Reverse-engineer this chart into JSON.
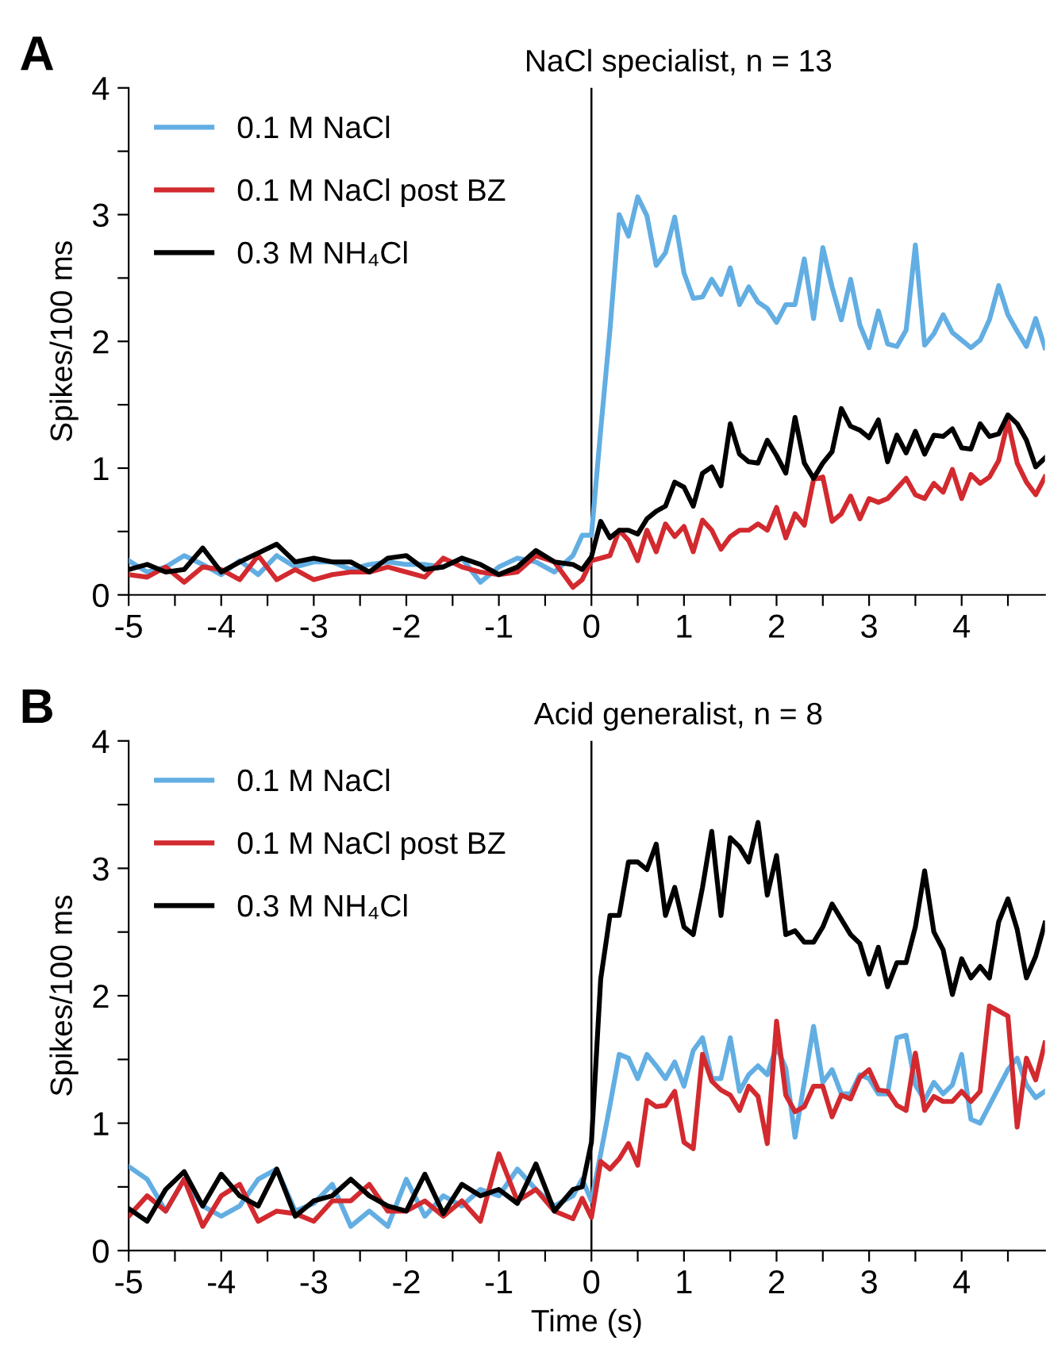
{
  "chart_data": [
    {
      "type": "line",
      "title": "NaCl specialist, n = 13",
      "ylabel": "Spikes/100 ms",
      "annotations": [
        "A"
      ],
      "legend": "top left",
      "line_style": "solid",
      "x": [
        -5,
        -4.8,
        -4.6,
        -4.4,
        -4.2,
        -4,
        -3.8,
        -3.6,
        -3.4,
        -3.2,
        -3,
        -2.8,
        -2.6,
        -2.4,
        -2.2,
        -2,
        -1.8,
        -1.6,
        -1.4,
        -1.2,
        -1,
        -0.8,
        -0.6,
        -0.4,
        -0.2,
        -0.1,
        0,
        0.1,
        0.2,
        0.3,
        0.4,
        0.5,
        0.6,
        0.7,
        0.8,
        0.9,
        1,
        1.1,
        1.2,
        1.3,
        1.4,
        1.5,
        1.6,
        1.7,
        1.8,
        1.9,
        2,
        2.1,
        2.2,
        2.3,
        2.4,
        2.5,
        2.6,
        2.7,
        2.8,
        2.9,
        3,
        3.1,
        3.2,
        3.3,
        3.4,
        3.5,
        3.6,
        3.7,
        3.8,
        3.9,
        4,
        4.1,
        4.2,
        4.3,
        4.4,
        4.5,
        4.6,
        4.7,
        4.8,
        4.9
      ],
      "series": [
        {
          "name": "0.1 M NaCl",
          "color": "#62aee3",
          "values": [
            0.27,
            0.18,
            0.22,
            0.31,
            0.24,
            0.16,
            0.27,
            0.16,
            0.31,
            0.22,
            0.26,
            0.26,
            0.2,
            0.24,
            0.26,
            0.24,
            0.24,
            0.22,
            0.29,
            0.1,
            0.22,
            0.29,
            0.26,
            0.18,
            0.31,
            0.47,
            0.47,
            1.3,
            2.09,
            3.0,
            2.83,
            3.14,
            2.99,
            2.6,
            2.7,
            2.98,
            2.54,
            2.34,
            2.35,
            2.49,
            2.37,
            2.58,
            2.29,
            2.43,
            2.31,
            2.26,
            2.15,
            2.29,
            2.29,
            2.65,
            2.18,
            2.74,
            2.43,
            2.17,
            2.49,
            2.13,
            1.95,
            2.24,
            1.98,
            1.96,
            2.09,
            2.76,
            1.97,
            2.06,
            2.21,
            2.07,
            2.01,
            1.95,
            2.01,
            2.17,
            2.44,
            2.21,
            2.08,
            1.96,
            2.18,
            1.95
          ]
        },
        {
          "name": "0.1 M NaCl post BZ",
          "color": "#d22a2f",
          "values": [
            0.16,
            0.14,
            0.22,
            0.1,
            0.22,
            0.2,
            0.12,
            0.31,
            0.12,
            0.2,
            0.12,
            0.16,
            0.18,
            0.18,
            0.22,
            0.18,
            0.14,
            0.29,
            0.22,
            0.18,
            0.16,
            0.18,
            0.31,
            0.26,
            0.06,
            0.12,
            0.27,
            0.29,
            0.31,
            0.51,
            0.43,
            0.27,
            0.51,
            0.34,
            0.56,
            0.46,
            0.54,
            0.34,
            0.59,
            0.51,
            0.36,
            0.46,
            0.51,
            0.51,
            0.56,
            0.51,
            0.69,
            0.45,
            0.64,
            0.55,
            0.91,
            0.93,
            0.58,
            0.64,
            0.78,
            0.6,
            0.76,
            0.73,
            0.76,
            0.84,
            0.92,
            0.79,
            0.76,
            0.88,
            0.81,
            0.99,
            0.76,
            0.95,
            0.88,
            0.93,
            1.06,
            1.37,
            1.04,
            0.89,
            0.79,
            0.93
          ]
        },
        {
          "name": "0.3 M NH₄Cl",
          "color": "#000000",
          "values": [
            0.2,
            0.24,
            0.18,
            0.2,
            0.37,
            0.18,
            0.26,
            0.33,
            0.4,
            0.26,
            0.29,
            0.26,
            0.26,
            0.18,
            0.29,
            0.31,
            0.2,
            0.22,
            0.29,
            0.24,
            0.16,
            0.22,
            0.35,
            0.26,
            0.24,
            0.2,
            0.3,
            0.58,
            0.45,
            0.51,
            0.51,
            0.48,
            0.6,
            0.66,
            0.7,
            0.89,
            0.85,
            0.7,
            0.96,
            1.01,
            0.86,
            1.35,
            1.11,
            1.05,
            1.04,
            1.22,
            1.1,
            0.96,
            1.4,
            1.04,
            0.92,
            1.04,
            1.13,
            1.47,
            1.33,
            1.3,
            1.24,
            1.38,
            1.05,
            1.26,
            1.12,
            1.29,
            1.11,
            1.26,
            1.25,
            1.31,
            1.16,
            1.15,
            1.35,
            1.25,
            1.27,
            1.42,
            1.35,
            1.22,
            1.01,
            1.08
          ]
        }
      ],
      "xlim": [
        -5,
        4.9
      ],
      "ylim": [
        0,
        4
      ],
      "xticks": [
        -5,
        {
          "value": -4.5,
          "label": null
        },
        -4,
        {
          "value": -3.5,
          "label": null
        },
        -3,
        {
          "value": -2.5,
          "label": null
        },
        -2,
        {
          "value": -1.5,
          "label": null
        },
        -1,
        {
          "value": -0.5,
          "label": null
        },
        0,
        {
          "value": 0.5,
          "label": null
        },
        1,
        {
          "value": 1.5,
          "label": null
        },
        2,
        {
          "value": 2.5,
          "label": null
        },
        3,
        {
          "value": 3.5,
          "label": null
        },
        4,
        {
          "value": 4.5,
          "label": null
        }
      ],
      "yticks": [
        0,
        {
          "value": 0.5,
          "label": null
        },
        1,
        {
          "value": 1.5,
          "label": null
        },
        2,
        {
          "value": 2.5,
          "label": null
        },
        3,
        {
          "value": 3.5,
          "label": null
        },
        4
      ],
      "ref_lines": [
        {
          "axis": "x",
          "value": 0,
          "color": "#000000"
        }
      ]
    },
    {
      "type": "line",
      "title": "Acid generalist, n = 8",
      "xlabel": "Time (s)",
      "ylabel": "Spikes/100 ms",
      "annotations": [
        "B"
      ],
      "legend": "top left",
      "line_style": "solid",
      "x": [
        -5,
        -4.8,
        -4.6,
        -4.4,
        -4.2,
        -4,
        -3.8,
        -3.6,
        -3.4,
        -3.2,
        -3,
        -2.8,
        -2.6,
        -2.4,
        -2.2,
        -2,
        -1.8,
        -1.6,
        -1.4,
        -1.2,
        -1,
        -0.8,
        -0.6,
        -0.4,
        -0.2,
        -0.1,
        0,
        0.1,
        0.2,
        0.3,
        0.4,
        0.5,
        0.6,
        0.7,
        0.8,
        0.9,
        1,
        1.1,
        1.2,
        1.3,
        1.4,
        1.5,
        1.6,
        1.7,
        1.8,
        1.9,
        2,
        2.1,
        2.2,
        2.3,
        2.4,
        2.5,
        2.6,
        2.7,
        2.8,
        2.9,
        3,
        3.1,
        3.2,
        3.3,
        3.4,
        3.5,
        3.6,
        3.7,
        3.8,
        3.9,
        4,
        4.1,
        4.2,
        4.3,
        4.4,
        4.5,
        4.6,
        4.7,
        4.8,
        4.9
      ],
      "series": [
        {
          "name": "0.1 M NaCl",
          "color": "#62aee3",
          "values": [
            0.66,
            0.56,
            0.31,
            0.56,
            0.35,
            0.27,
            0.35,
            0.56,
            0.64,
            0.31,
            0.37,
            0.52,
            0.19,
            0.31,
            0.19,
            0.56,
            0.27,
            0.43,
            0.35,
            0.48,
            0.43,
            0.64,
            0.48,
            0.35,
            0.43,
            0.56,
            0.39,
            0.76,
            1.14,
            1.54,
            1.51,
            1.35,
            1.54,
            1.45,
            1.35,
            1.48,
            1.29,
            1.57,
            1.67,
            1.35,
            1.35,
            1.67,
            1.25,
            1.38,
            1.45,
            1.38,
            1.6,
            1.43,
            0.89,
            1.32,
            1.76,
            1.32,
            1.42,
            1.23,
            1.23,
            1.38,
            1.35,
            1.23,
            1.23,
            1.67,
            1.69,
            1.3,
            1.18,
            1.32,
            1.23,
            1.3,
            1.54,
            1.03,
            1.0,
            1.14,
            1.28,
            1.42,
            1.51,
            1.3,
            1.2,
            1.25
          ]
        },
        {
          "name": "0.1 M NaCl post BZ",
          "color": "#d22a2f",
          "values": [
            0.27,
            0.43,
            0.31,
            0.56,
            0.19,
            0.43,
            0.52,
            0.23,
            0.31,
            0.29,
            0.23,
            0.39,
            0.39,
            0.52,
            0.31,
            0.31,
            0.39,
            0.27,
            0.39,
            0.23,
            0.76,
            0.39,
            0.48,
            0.31,
            0.25,
            0.41,
            0.26,
            0.7,
            0.64,
            0.72,
            0.84,
            0.67,
            1.18,
            1.13,
            1.14,
            1.25,
            0.85,
            0.8,
            1.54,
            1.33,
            1.26,
            1.22,
            1.1,
            1.29,
            1.21,
            0.84,
            1.8,
            1.22,
            1.09,
            1.13,
            1.29,
            1.29,
            1.05,
            1.22,
            1.19,
            1.36,
            1.42,
            1.26,
            1.25,
            1.14,
            1.1,
            1.55,
            1.1,
            1.21,
            1.17,
            1.17,
            1.25,
            1.17,
            1.25,
            1.92,
            1.88,
            1.84,
            0.97,
            1.51,
            1.34,
            1.63
          ]
        },
        {
          "name": "0.3 M NH₄Cl",
          "color": "#000000",
          "values": [
            0.33,
            0.23,
            0.48,
            0.62,
            0.35,
            0.6,
            0.43,
            0.35,
            0.64,
            0.27,
            0.39,
            0.43,
            0.56,
            0.43,
            0.35,
            0.31,
            0.6,
            0.29,
            0.52,
            0.43,
            0.48,
            0.37,
            0.68,
            0.31,
            0.48,
            0.5,
            0.85,
            2.13,
            2.63,
            2.63,
            3.05,
            3.05,
            2.99,
            3.19,
            2.63,
            2.85,
            2.54,
            2.48,
            2.85,
            3.29,
            2.63,
            3.24,
            3.17,
            3.05,
            3.36,
            2.79,
            3.1,
            2.48,
            2.51,
            2.42,
            2.42,
            2.54,
            2.72,
            2.6,
            2.48,
            2.41,
            2.17,
            2.38,
            2.07,
            2.26,
            2.26,
            2.54,
            2.98,
            2.5,
            2.36,
            2.01,
            2.29,
            2.14,
            2.23,
            2.14,
            2.58,
            2.76,
            2.52,
            2.14,
            2.31,
            2.57
          ]
        }
      ],
      "xlim": [
        -5,
        4.9
      ],
      "ylim": [
        0,
        4
      ],
      "xticks": [
        -5,
        {
          "value": -4.5,
          "label": null
        },
        -4,
        {
          "value": -3.5,
          "label": null
        },
        -3,
        {
          "value": -2.5,
          "label": null
        },
        -2,
        {
          "value": -1.5,
          "label": null
        },
        -1,
        {
          "value": -0.5,
          "label": null
        },
        0,
        {
          "value": 0.5,
          "label": null
        },
        1,
        {
          "value": 1.5,
          "label": null
        },
        2,
        {
          "value": 2.5,
          "label": null
        },
        3,
        {
          "value": 3.5,
          "label": null
        },
        4,
        {
          "value": 4.5,
          "label": null
        }
      ],
      "yticks": [
        0,
        {
          "value": 0.5,
          "label": null
        },
        1,
        {
          "value": 1.5,
          "label": null
        },
        2,
        {
          "value": 2.5,
          "label": null
        },
        3,
        {
          "value": 3.5,
          "label": null
        },
        4
      ],
      "ref_lines": [
        {
          "axis": "x",
          "value": 0,
          "color": "#000000"
        }
      ]
    }
  ]
}
